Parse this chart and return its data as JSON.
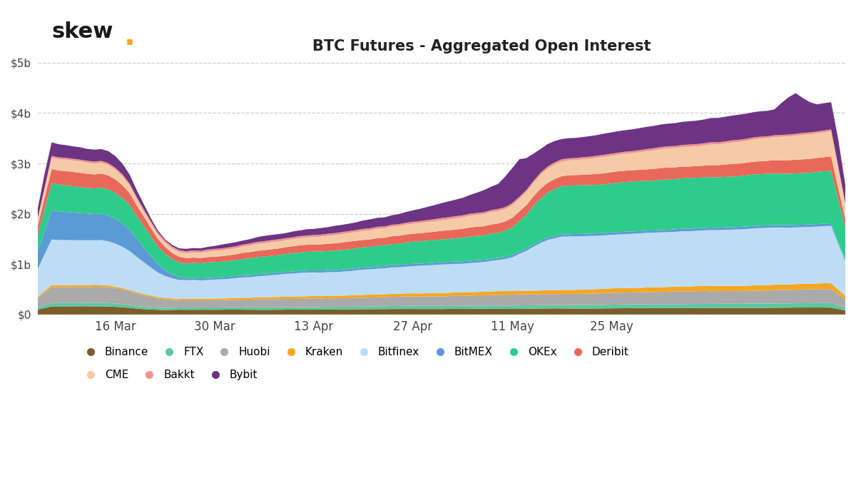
{
  "title": "BTC Futures - Aggregated Open Interest",
  "skew_dot_color": "#F5A623",
  "background_color": "#ffffff",
  "grid_color": "#cccccc",
  "ylim": [
    0,
    5000000000
  ],
  "yticks": [
    0,
    1000000000,
    2000000000,
    3000000000,
    4000000000,
    5000000000
  ],
  "ytick_labels": [
    "$0",
    "$1b",
    "$2b",
    "$3b",
    "$4b",
    "$5b"
  ],
  "xtick_labels": [
    "16 Mar",
    "30 Mar",
    "13 Apr",
    "27 Apr",
    "11 May",
    "25 May"
  ],
  "series_order": [
    "Binance",
    "FTX",
    "Huobi",
    "Kraken",
    "Bitfinex",
    "BitMEX",
    "OKEx",
    "Deribit",
    "CME",
    "Bakkt",
    "Bybit"
  ],
  "colors": {
    "Binance": "#7B5E2A",
    "FTX": "#5CC8A0",
    "Huobi": "#AAAAAA",
    "Kraken": "#F5A623",
    "Bitfinex": "#BDDDF5",
    "BitMEX": "#5B9BD5",
    "OKEx": "#2ECC8A",
    "Deribit": "#E8685A",
    "CME": "#F5CBA7",
    "Bakkt": "#F1948A",
    "Bybit": "#6C3483"
  },
  "n_points": 115
}
